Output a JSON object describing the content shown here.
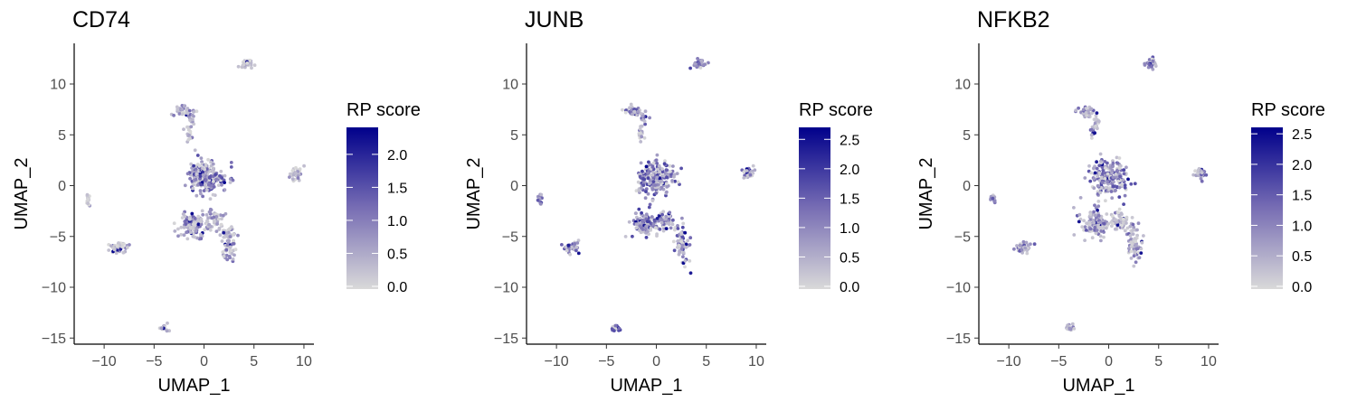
{
  "chart_data": [
    {
      "type": "scatter",
      "title": "CD74",
      "xlabel": "UMAP_1",
      "ylabel": "UMAP_2",
      "xlim": [
        -13,
        11
      ],
      "ylim": [
        -15.6,
        14
      ],
      "x_ticks": [
        -10,
        -5,
        0,
        5,
        10
      ],
      "y_ticks": [
        -15,
        -10,
        -5,
        0,
        5,
        10
      ],
      "x_tick_labels": [
        "−10",
        "−5",
        "0",
        "5",
        "10"
      ],
      "y_tick_labels": [
        "−15",
        "−10",
        "−5",
        "0",
        "5",
        "10"
      ],
      "grid": false,
      "legend": {
        "title": "RP score",
        "min": 0,
        "max": 2.45,
        "ticks": [
          0.0,
          0.5,
          1.0,
          1.5,
          2.0
        ],
        "tick_labels": [
          "0.0",
          "0.5",
          "1.0",
          "1.5",
          "2.0"
        ],
        "position": "right",
        "low_color": "#d9d9d9",
        "high_color": "#00008b"
      },
      "clusters": [
        {
          "x": 4.3,
          "y": 12.0,
          "sx": 0.4,
          "sy": 0.3,
          "n": 35,
          "level": 0.05
        },
        {
          "x": 9.2,
          "y": 1.2,
          "sx": 0.4,
          "sy": 0.45,
          "n": 40,
          "level": 0.15
        },
        {
          "x": -11.6,
          "y": -1.3,
          "sx": 0.15,
          "sy": 0.5,
          "n": 15,
          "level": 0.1
        },
        {
          "x": -8.5,
          "y": -6.1,
          "sx": 0.6,
          "sy": 0.4,
          "n": 45,
          "level": 0.15
        },
        {
          "x": -4.0,
          "y": -14.0,
          "sx": 0.3,
          "sy": 0.25,
          "n": 18,
          "level": 0.25
        },
        {
          "x": -2.2,
          "y": 7.3,
          "sx": 0.8,
          "sy": 0.35,
          "n": 35,
          "level": 0.3
        },
        {
          "x": -1.5,
          "y": 5.2,
          "sx": 0.25,
          "sy": 0.6,
          "n": 18,
          "level": 0.2
        },
        {
          "x": -1.2,
          "y": 6.6,
          "sx": 0.2,
          "sy": 0.5,
          "n": 10,
          "level": 0.25
        },
        {
          "x": 0.0,
          "y": 0.8,
          "sx": 1.3,
          "sy": 1.1,
          "n": 220,
          "level": 0.5
        },
        {
          "x": -1.2,
          "y": -3.8,
          "sx": 1.0,
          "sy": 1.0,
          "n": 110,
          "level": 0.3
        },
        {
          "x": 1.0,
          "y": -3.5,
          "sx": 0.8,
          "sy": 0.8,
          "n": 55,
          "level": 0.25
        },
        {
          "x": 2.6,
          "y": -5.8,
          "sx": 0.5,
          "sy": 1.3,
          "n": 70,
          "level": 0.25
        }
      ]
    },
    {
      "type": "scatter",
      "title": "JUNB",
      "xlabel": "UMAP_1",
      "ylabel": "UMAP_2",
      "xlim": [
        -13,
        11
      ],
      "ylim": [
        -15.6,
        14
      ],
      "x_ticks": [
        -10,
        -5,
        0,
        5,
        10
      ],
      "y_ticks": [
        -15,
        -10,
        -5,
        0,
        5,
        10
      ],
      "x_tick_labels": [
        "−10",
        "−5",
        "0",
        "5",
        "10"
      ],
      "y_tick_labels": [
        "−15",
        "−10",
        "−5",
        "0",
        "5",
        "10"
      ],
      "grid": false,
      "legend": {
        "title": "RP score",
        "min": 0,
        "max": 2.75,
        "ticks": [
          0.0,
          0.5,
          1.0,
          1.5,
          2.0,
          2.5
        ],
        "tick_labels": [
          "0.0",
          "0.5",
          "1.0",
          "1.5",
          "2.0",
          "2.5"
        ],
        "position": "right",
        "low_color": "#d9d9d9",
        "high_color": "#00008b"
      },
      "clusters": [
        {
          "x": 4.3,
          "y": 12.0,
          "sx": 0.4,
          "sy": 0.3,
          "n": 35,
          "level": 0.45
        },
        {
          "x": 9.2,
          "y": 1.2,
          "sx": 0.4,
          "sy": 0.45,
          "n": 40,
          "level": 0.4
        },
        {
          "x": -11.6,
          "y": -1.3,
          "sx": 0.15,
          "sy": 0.5,
          "n": 15,
          "level": 0.45
        },
        {
          "x": -8.5,
          "y": -6.1,
          "sx": 0.6,
          "sy": 0.4,
          "n": 45,
          "level": 0.35
        },
        {
          "x": -4.0,
          "y": -14.0,
          "sx": 0.3,
          "sy": 0.25,
          "n": 18,
          "level": 0.6
        },
        {
          "x": -2.2,
          "y": 7.3,
          "sx": 0.8,
          "sy": 0.35,
          "n": 35,
          "level": 0.4
        },
        {
          "x": -1.5,
          "y": 5.2,
          "sx": 0.25,
          "sy": 0.6,
          "n": 18,
          "level": 0.25
        },
        {
          "x": -1.2,
          "y": 6.6,
          "sx": 0.2,
          "sy": 0.5,
          "n": 10,
          "level": 0.35
        },
        {
          "x": 0.0,
          "y": 0.8,
          "sx": 1.3,
          "sy": 1.1,
          "n": 220,
          "level": 0.45
        },
        {
          "x": -1.2,
          "y": -3.8,
          "sx": 1.0,
          "sy": 1.0,
          "n": 110,
          "level": 0.45
        },
        {
          "x": 1.0,
          "y": -3.5,
          "sx": 0.8,
          "sy": 0.8,
          "n": 55,
          "level": 0.4
        },
        {
          "x": 2.6,
          "y": -5.8,
          "sx": 0.5,
          "sy": 1.3,
          "n": 70,
          "level": 0.4
        }
      ]
    },
    {
      "type": "scatter",
      "title": "NFKB2",
      "xlabel": "UMAP_1",
      "ylabel": "UMAP_2",
      "xlim": [
        -13,
        11
      ],
      "ylim": [
        -15.6,
        14
      ],
      "x_ticks": [
        -10,
        -5,
        0,
        5,
        10
      ],
      "y_ticks": [
        -15,
        -10,
        -5,
        0,
        5,
        10
      ],
      "x_tick_labels": [
        "−10",
        "−5",
        "0",
        "5",
        "10"
      ],
      "y_tick_labels": [
        "−15",
        "−10",
        "−5",
        "0",
        "5",
        "10"
      ],
      "grid": false,
      "legend": {
        "title": "RP score",
        "min": 0,
        "max": 2.65,
        "ticks": [
          0.0,
          0.5,
          1.0,
          1.5,
          2.0,
          2.5
        ],
        "tick_labels": [
          "0.0",
          "0.5",
          "1.0",
          "1.5",
          "2.0",
          "2.5"
        ],
        "position": "right",
        "low_color": "#d9d9d9",
        "high_color": "#00008b"
      },
      "clusters": [
        {
          "x": 4.3,
          "y": 12.0,
          "sx": 0.4,
          "sy": 0.3,
          "n": 35,
          "level": 0.35
        },
        {
          "x": 9.2,
          "y": 1.2,
          "sx": 0.4,
          "sy": 0.45,
          "n": 40,
          "level": 0.35
        },
        {
          "x": -11.6,
          "y": -1.3,
          "sx": 0.15,
          "sy": 0.5,
          "n": 15,
          "level": 0.35
        },
        {
          "x": -8.5,
          "y": -6.1,
          "sx": 0.6,
          "sy": 0.4,
          "n": 45,
          "level": 0.35
        },
        {
          "x": -4.0,
          "y": -14.0,
          "sx": 0.3,
          "sy": 0.25,
          "n": 18,
          "level": 0.3
        },
        {
          "x": -2.2,
          "y": 7.3,
          "sx": 0.8,
          "sy": 0.35,
          "n": 35,
          "level": 0.35
        },
        {
          "x": -1.5,
          "y": 5.2,
          "sx": 0.25,
          "sy": 0.6,
          "n": 18,
          "level": 0.3
        },
        {
          "x": -1.2,
          "y": 6.6,
          "sx": 0.2,
          "sy": 0.5,
          "n": 10,
          "level": 0.3
        },
        {
          "x": 0.0,
          "y": 0.8,
          "sx": 1.3,
          "sy": 1.1,
          "n": 220,
          "level": 0.45
        },
        {
          "x": -1.2,
          "y": -3.8,
          "sx": 1.0,
          "sy": 1.0,
          "n": 110,
          "level": 0.35
        },
        {
          "x": 1.0,
          "y": -3.5,
          "sx": 0.8,
          "sy": 0.8,
          "n": 55,
          "level": 0.2
        },
        {
          "x": 2.6,
          "y": -5.8,
          "sx": 0.5,
          "sy": 1.3,
          "n": 70,
          "level": 0.3
        }
      ]
    }
  ]
}
